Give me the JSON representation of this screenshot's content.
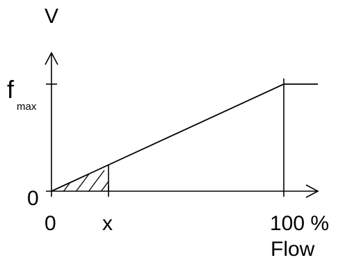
{
  "diagram": {
    "y_axis_label": "V",
    "x_axis_label": "Flow",
    "y_ticks": {
      "zero": "0",
      "fmax_main": "f",
      "fmax_sub": "max"
    },
    "x_ticks": {
      "zero": "0",
      "x": "x",
      "full": "100 %"
    },
    "colors": {
      "stroke": "#000000",
      "background": "#ffffff"
    }
  }
}
